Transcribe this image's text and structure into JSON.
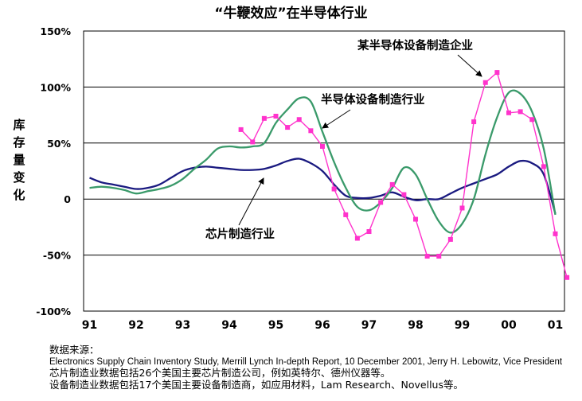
{
  "chart_data": {
    "type": "line",
    "title": "“牛鞭效应”在半导体行业",
    "ylabel": "库存量变化",
    "xlabel": "",
    "ylim": [
      -100,
      150
    ],
    "xlim": [
      90.75,
      101.1
    ],
    "yticks": [
      150,
      100,
      50,
      0,
      -50,
      -100
    ],
    "ytick_labels": [
      "150%",
      "100%",
      "50%",
      "0",
      "-50%",
      "-100%"
    ],
    "xtick_labels": [
      "91",
      "92",
      "93",
      "94",
      "95",
      "96",
      "97",
      "98",
      "99",
      "00",
      "01"
    ],
    "grid": "horizontal",
    "colors": {
      "chips": "#1a1a80",
      "equipment": "#3a9a6a",
      "company": "#ff33cc",
      "plot_border": "#000000"
    },
    "series": [
      {
        "name": "芯片制造行业",
        "x": [
          91.0,
          91.25,
          91.5,
          91.75,
          92.0,
          92.25,
          92.5,
          92.75,
          93.0,
          93.25,
          93.5,
          93.75,
          94.0,
          94.25,
          94.5,
          94.75,
          95.0,
          95.25,
          95.5,
          95.75,
          96.0,
          96.25,
          96.5,
          96.75,
          97.0,
          97.25,
          97.5,
          97.75,
          98.0,
          98.25,
          98.5,
          98.75,
          99.0,
          99.25,
          99.5,
          99.75,
          100.0,
          100.25,
          100.5,
          100.75,
          101.0
        ],
        "values": [
          19,
          15,
          13,
          11,
          9,
          10,
          13,
          19,
          25,
          28,
          29,
          28,
          27,
          26,
          26,
          27,
          30,
          34,
          36,
          32,
          25,
          13,
          3,
          1,
          1,
          3,
          6,
          2,
          -1,
          0,
          0,
          5,
          10,
          14,
          18,
          22,
          29,
          34,
          32,
          22,
          -13
        ]
      },
      {
        "name": "半导体设备制造行业",
        "x": [
          91.0,
          91.25,
          91.5,
          91.75,
          92.0,
          92.25,
          92.5,
          92.75,
          93.0,
          93.25,
          93.5,
          93.75,
          94.0,
          94.25,
          94.5,
          94.75,
          95.0,
          95.25,
          95.5,
          95.75,
          96.0,
          96.25,
          96.5,
          96.75,
          97.0,
          97.25,
          97.5,
          97.75,
          98.0,
          98.25,
          98.5,
          98.75,
          99.0,
          99.25,
          99.5,
          99.75,
          100.0,
          100.25,
          100.5,
          100.75,
          101.0
        ],
        "values": [
          10,
          11,
          10,
          8,
          5,
          7,
          9,
          12,
          18,
          27,
          35,
          45,
          47,
          46,
          47,
          50,
          68,
          80,
          90,
          87,
          60,
          33,
          10,
          -7,
          -10,
          -3,
          10,
          28,
          22,
          0,
          -20,
          -30,
          -22,
          0,
          40,
          73,
          95,
          94,
          78,
          45,
          -14
        ]
      },
      {
        "name": "某半导体设备制造企业",
        "x": [
          94.25,
          94.5,
          94.75,
          95.0,
          95.25,
          95.5,
          95.75,
          96.0,
          96.25,
          96.5,
          96.75,
          97.0,
          97.25,
          97.5,
          97.75,
          98.0,
          98.25,
          98.5,
          98.75,
          99.0,
          99.25,
          99.5,
          99.75,
          100.0,
          100.25,
          100.5,
          100.75,
          101.0,
          101.25
        ],
        "values": [
          62,
          51,
          72,
          74,
          64,
          71,
          61,
          47,
          9,
          -14,
          -35,
          -29,
          -3,
          13,
          4,
          -18,
          -51,
          -51,
          -36,
          -8,
          69,
          104,
          113,
          77,
          78,
          71,
          29,
          -31,
          -70
        ]
      }
    ],
    "annotations": [
      "某半导体设备制造企业",
      "半导体设备制造行业",
      "芯片制造行业"
    ]
  },
  "source": {
    "heading": "数据来源：",
    "line1": "Electronics Supply Chain Inventory Study, Merrill Lynch In-depth Report, 10 December 2001, Jerry H. Lebowitz, Vice President",
    "line2": "芯片制造业数据包括26个美国主要芯片制造公司，例如英特尔、德州仪器等。",
    "line3": "设备制造业数据包括17个美国主要设备制造商，如应用材料，Lam Research、Novellus等。"
  }
}
